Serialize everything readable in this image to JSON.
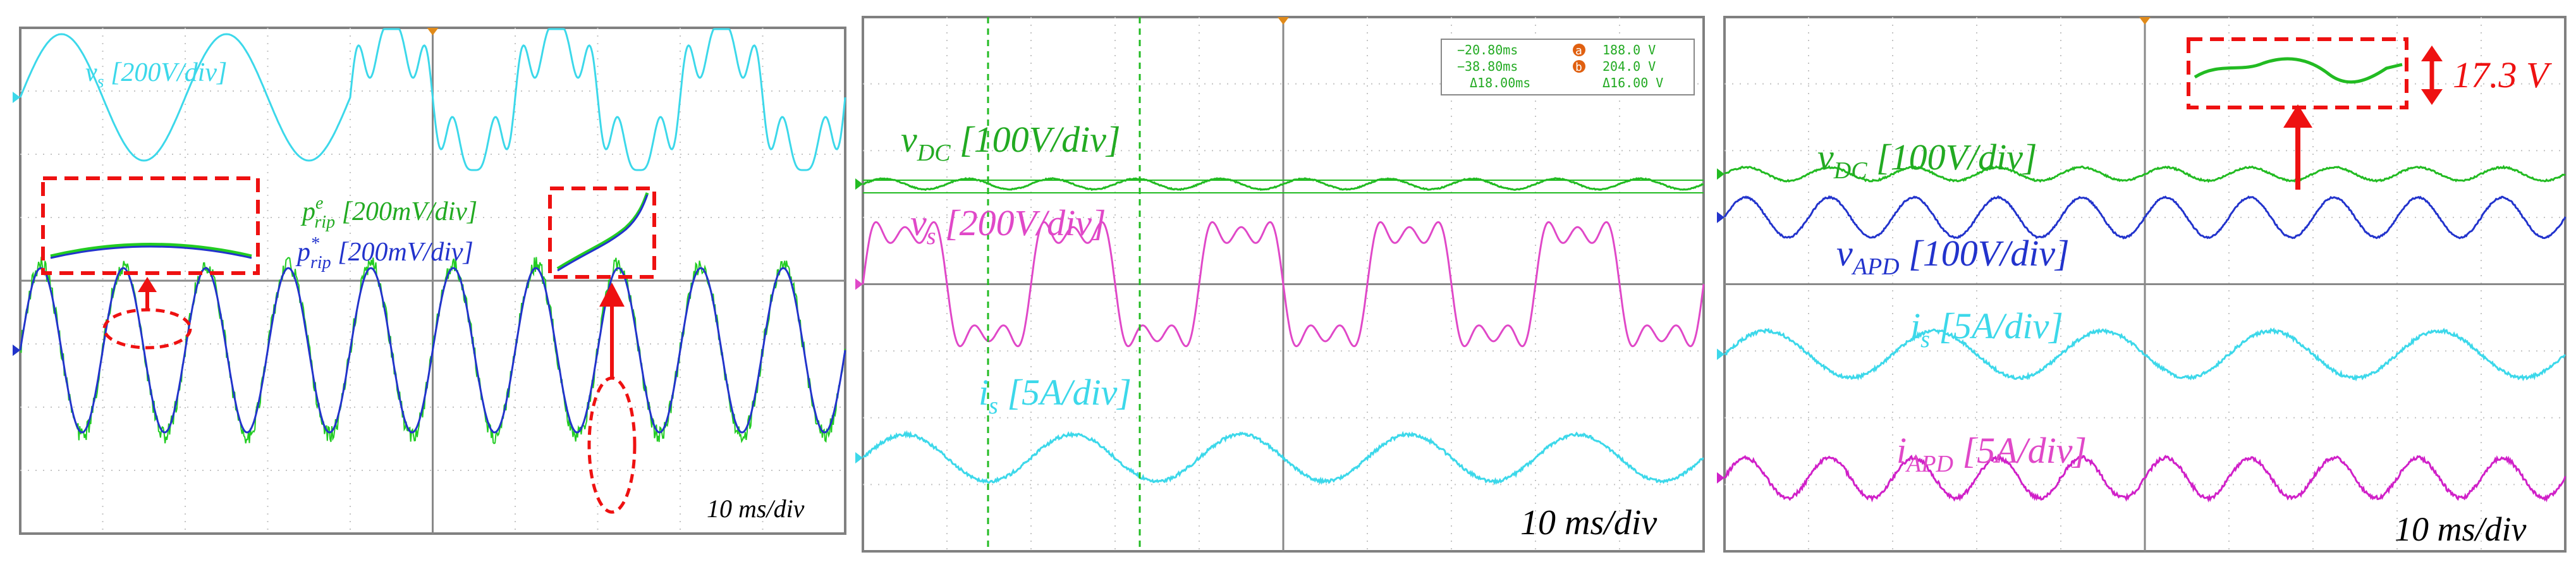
{
  "chart_data": [
    {
      "type": "line",
      "x_unit": "ms",
      "time_per_div_label": "10 ms/div",
      "grid": true,
      "traces": [
        {
          "id": "vs",
          "label_main": "v",
          "label_sub": "s",
          "label_sup": "",
          "label_scale": " [200V/div]",
          "color": "#3cd8ea",
          "amplitude_div": 1.0,
          "offset_div": 2.9,
          "freq_hz": 50,
          "harmonics": [
            [
              3,
              0.0
            ],
            [
              5,
              0.0
            ],
            [
              7,
              0.0
            ]
          ],
          "segments": [
            {
              "t_start_ms": 0,
              "t_end_ms": 40,
              "harmonics": [
                [
                  3,
                  0.0
                ],
                [
                  5,
                  0.0
                ]
              ]
            },
            {
              "t_start_ms": 40,
              "t_end_ms": 100,
              "harmonics": [
                [
                  3,
                  0.0
                ],
                [
                  5,
                  0.35
                ],
                [
                  7,
                  0.2
                ]
              ]
            }
          ]
        },
        {
          "id": "prip_e",
          "label_main": "p",
          "label_sub": "rip",
          "label_sup": "e",
          "label_scale": " [200mV/div]",
          "color": "#22cc22",
          "amplitude_div": 1.35,
          "offset_div": -1.1,
          "freq_hz": 100,
          "noise": 0.35
        },
        {
          "id": "prip_star",
          "label_main": "p",
          "label_sub": "rip",
          "label_sup": "*",
          "label_scale": " [200mV/div]",
          "color": "#2233cc",
          "amplitude_div": 1.3,
          "offset_div": -1.1,
          "freq_hz": 100,
          "noise": 0.0
        }
      ]
    },
    {
      "type": "line",
      "x_unit": "ms",
      "time_per_div_label": "10 ms/div",
      "grid": true,
      "cursor_readout": {
        "row1_left": "−20.80ms",
        "row1_mark": "a",
        "row1_right": "188.0 V",
        "row2_left": "−38.80ms",
        "row2_mark": "b",
        "row2_right": "204.0 V",
        "row3_left": "Δ18.00ms",
        "row3_right": "Δ16.00 V"
      },
      "traces": [
        {
          "id": "vdc",
          "label_main": "v",
          "label_sub": "DC",
          "label_sup": "",
          "label_scale": " [100V/div]",
          "color": "#22bb22",
          "amplitude_div": 0.08,
          "offset_div": 1.5,
          "freq_hz": 100,
          "noise": 0.02
        },
        {
          "id": "vs",
          "label_main": "v",
          "label_sub": "s",
          "label_sup": "",
          "label_scale": " [200V/div]",
          "color": "#e048c8",
          "amplitude_div": 0.95,
          "offset_div": 0.0,
          "freq_hz": 50,
          "harmonics": [
            [
              3,
              0.35
            ],
            [
              5,
              0.25
            ]
          ]
        },
        {
          "id": "is",
          "label_main": "i",
          "label_sub": "s",
          "label_sup": "",
          "label_scale": " [5A/div]",
          "color": "#3cd8ea",
          "amplitude_div": 0.35,
          "offset_div": -2.6,
          "freq_hz": 50,
          "noise": 0.06
        }
      ]
    },
    {
      "type": "line",
      "x_unit": "ms",
      "time_per_div_label": "10 ms/div",
      "grid": true,
      "annotation": "17.3 V",
      "traces": [
        {
          "id": "vdc",
          "label_main": "v",
          "label_sub": "DC",
          "label_sup": "",
          "label_scale": " [100V/div]",
          "color": "#22bb22",
          "amplitude_div": 0.1,
          "offset_div": 1.65,
          "freq_hz": 100,
          "noise": 0.03
        },
        {
          "id": "vapd",
          "label_main": "v",
          "label_sub": "APD",
          "label_sup": "",
          "label_scale": " [100V/div]",
          "color": "#2233cc",
          "amplitude_div": 0.3,
          "offset_div": 1.0,
          "freq_hz": 100,
          "noise": 0.03
        },
        {
          "id": "is",
          "label_main": "i",
          "label_sub": "s",
          "label_sup": "",
          "label_scale": " [5A/div]",
          "color": "#3cd8ea",
          "amplitude_div": 0.35,
          "offset_div": -1.05,
          "freq_hz": 50,
          "noise": 0.06
        },
        {
          "id": "iapd",
          "label_main": "i",
          "label_sub": "APD",
          "label_sup": "",
          "label_scale": " [5A/div]",
          "color": "#d020c8",
          "amplitude_div": 0.3,
          "offset_div": -2.9,
          "freq_hz": 100,
          "noise": 0.07
        }
      ]
    }
  ]
}
